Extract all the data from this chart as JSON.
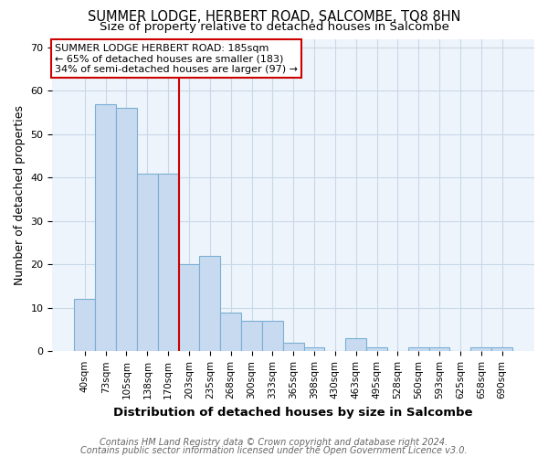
{
  "title": "SUMMER LODGE, HERBERT ROAD, SALCOMBE, TQ8 8HN",
  "subtitle": "Size of property relative to detached houses in Salcombe",
  "xlabel": "Distribution of detached houses by size in Salcombe",
  "ylabel": "Number of detached properties",
  "footnote1": "Contains HM Land Registry data © Crown copyright and database right 2024.",
  "footnote2": "Contains public sector information licensed under the Open Government Licence v3.0.",
  "annotation_line1": "SUMMER LODGE HERBERT ROAD: 185sqm",
  "annotation_line2": "← 65% of detached houses are smaller (183)",
  "annotation_line3": "34% of semi-detached houses are larger (97) →",
  "bar_labels": [
    "40sqm",
    "73sqm",
    "105sqm",
    "138sqm",
    "170sqm",
    "203sqm",
    "235sqm",
    "268sqm",
    "300sqm",
    "333sqm",
    "365sqm",
    "398sqm",
    "430sqm",
    "463sqm",
    "495sqm",
    "528sqm",
    "560sqm",
    "593sqm",
    "625sqm",
    "658sqm",
    "690sqm"
  ],
  "bar_values": [
    12,
    57,
    56,
    41,
    41,
    20,
    22,
    9,
    7,
    7,
    2,
    1,
    0,
    3,
    1,
    0,
    1,
    1,
    0,
    1,
    1
  ],
  "bar_color": "#c8daf0",
  "bar_edge_color": "#7aafd4",
  "vline_color": "#cc0000",
  "ylim": [
    0,
    72
  ],
  "yticks": [
    0,
    10,
    20,
    30,
    40,
    50,
    60,
    70
  ],
  "grid_color": "#c8d8e8",
  "annotation_box_color": "#ffffff",
  "annotation_box_edge": "#cc0000",
  "title_fontsize": 10.5,
  "subtitle_fontsize": 9.5,
  "axis_label_fontsize": 9,
  "tick_fontsize": 7.5,
  "annotation_fontsize": 8,
  "footnote_fontsize": 7
}
